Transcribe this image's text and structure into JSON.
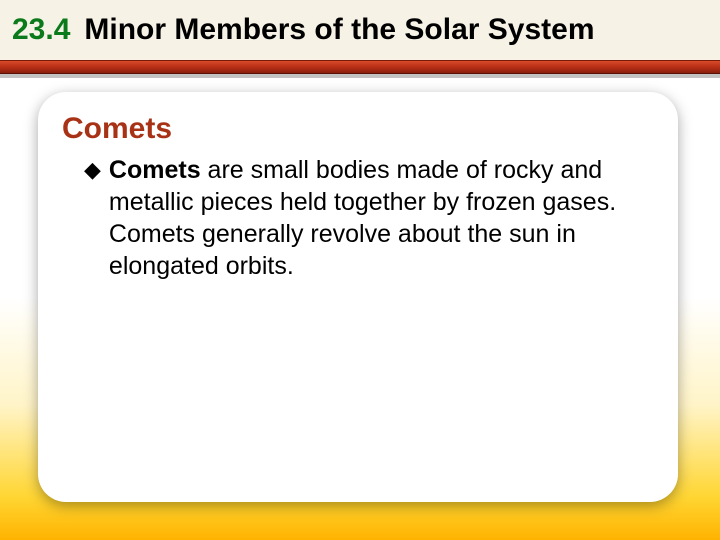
{
  "header": {
    "section_number": "23.4",
    "section_title": "Minor Members of the Solar System",
    "number_color": "#0a7a1a",
    "title_color": "#000000",
    "bar_gradient": [
      "#d94a2a",
      "#b72f16",
      "#8a1f0e"
    ],
    "top_bg": "#f6f2e6"
  },
  "card": {
    "subtitle": "Comets",
    "subtitle_color": "#a83216",
    "bullet_marker": "◆",
    "bullet_term": "Comets",
    "bullet_rest": " are small bodies made of rocky and metallic pieces held together by frozen gases. Comets generally revolve about the sun in elongated orbits.",
    "background": "#ffffff",
    "border_radius": 28
  },
  "slide_bg_gradient": [
    "#ffffff",
    "#fff4c8",
    "#ffd633",
    "#ffb300"
  ],
  "fonts": {
    "family": "Arial",
    "header_size_pt": 22,
    "subtitle_size_pt": 22,
    "body_size_pt": 19
  }
}
